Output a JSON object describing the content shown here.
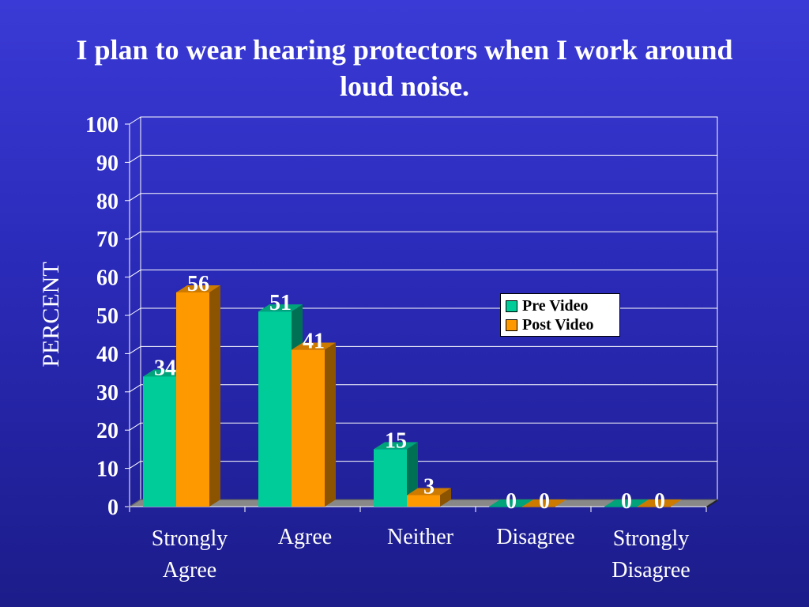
{
  "slide": {
    "title": "I plan to wear hearing protectors when I work around loud noise."
  },
  "chart_data": {
    "type": "bar",
    "title": "I plan to wear hearing protectors when I work around loud noise.",
    "xlabel": "",
    "ylabel": "PERCENT",
    "ylim": [
      0,
      100
    ],
    "yticks": [
      0,
      10,
      20,
      30,
      40,
      50,
      60,
      70,
      80,
      90,
      100
    ],
    "categories": [
      "Strongly Agree",
      "Agree",
      "Neither",
      "Disagree",
      "Strongly Disagree"
    ],
    "category_lines": [
      [
        "Strongly",
        "Agree"
      ],
      [
        "Agree"
      ],
      [
        "Neither"
      ],
      [
        "Disagree"
      ],
      [
        "Strongly",
        "Disagree"
      ]
    ],
    "series": [
      {
        "name": "Pre Video",
        "values": [
          34,
          51,
          15,
          0,
          0
        ],
        "color": "#00cc99"
      },
      {
        "name": "Post Video",
        "values": [
          56,
          41,
          3,
          0,
          0
        ],
        "color": "#ff9900"
      }
    ],
    "grid": true,
    "legend": "right-center",
    "style": {
      "is_3d": true,
      "text_color": "#ffffff",
      "grid_color": "#ffffff",
      "floor_color": "#888888"
    }
  }
}
